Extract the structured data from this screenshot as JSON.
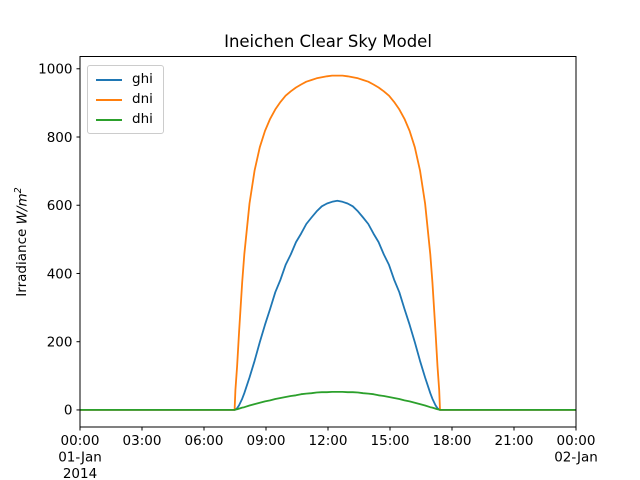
{
  "figure": {
    "background": "#ffffff"
  },
  "chart_data": {
    "type": "line",
    "title": "Ineichen Clear Sky Model",
    "xlabel": "",
    "ylabel": "Irradiance W/m^2",
    "ylabel_parts": {
      "prefix": "Irradiance ",
      "math": "W/m",
      "sup": "2"
    },
    "grid": false,
    "legend_position": "upper left",
    "xlim": [
      0,
      24
    ],
    "ylim": [
      -50,
      1036
    ],
    "yticks": [
      0,
      200,
      400,
      600,
      800,
      1000
    ],
    "xticks": [
      {
        "h": 0,
        "label": "00:00",
        "sub": [
          "01-Jan",
          "2014"
        ]
      },
      {
        "h": 3,
        "label": "03:00"
      },
      {
        "h": 6,
        "label": "06:00"
      },
      {
        "h": 9,
        "label": "09:00"
      },
      {
        "h": 12,
        "label": "12:00"
      },
      {
        "h": 15,
        "label": "15:00"
      },
      {
        "h": 18,
        "label": "18:00"
      },
      {
        "h": 21,
        "label": "21:00"
      },
      {
        "h": 24,
        "label": "00:00",
        "sub": [
          "02-Jan"
        ]
      }
    ],
    "x_unit": "hour of day",
    "x_hours": [
      0,
      7.0,
      7.48,
      7.52,
      7.6,
      7.7,
      7.85,
      7.95,
      8.2,
      8.45,
      8.7,
      8.95,
      9.2,
      9.45,
      9.7,
      9.95,
      10.2,
      10.45,
      10.7,
      10.95,
      11.2,
      11.45,
      11.7,
      11.95,
      12.2,
      12.45,
      12.7,
      12.95,
      13.2,
      13.45,
      13.7,
      13.95,
      14.2,
      14.45,
      14.7,
      14.95,
      15.2,
      15.45,
      15.7,
      15.95,
      16.2,
      16.45,
      16.7,
      16.95,
      17.05,
      17.2,
      17.3,
      17.38,
      17.42,
      18.0,
      24.0
    ],
    "series": [
      {
        "name": "ghi",
        "color": "#1f77b4",
        "peak": 613,
        "values": [
          0,
          0,
          0,
          1,
          5,
          14,
          33,
          49,
          95,
          144,
          199,
          250,
          296,
          345,
          382,
          425,
          456,
          492,
          517,
          545,
          564,
          582,
          597,
          605,
          610,
          613,
          610,
          605,
          597,
          582,
          564,
          545,
          517,
          492,
          456,
          425,
          382,
          345,
          296,
          250,
          199,
          144,
          95,
          49,
          33,
          14,
          5,
          1,
          0,
          0,
          0
        ]
      },
      {
        "name": "dni",
        "color": "#ff7f0e",
        "peak": 980,
        "values": [
          0,
          0,
          0,
          58,
          128,
          230,
          375,
          456,
          605,
          702,
          770,
          818,
          853,
          881,
          903,
          921,
          934,
          945,
          954,
          962,
          967,
          972,
          975,
          978,
          980,
          980,
          980,
          978,
          975,
          972,
          967,
          962,
          954,
          945,
          934,
          921,
          903,
          881,
          853,
          818,
          770,
          702,
          605,
          456,
          375,
          230,
          128,
          58,
          0,
          0,
          0
        ]
      },
      {
        "name": "dhi",
        "color": "#2ca02c",
        "peak": 53,
        "values": [
          0,
          0,
          0,
          1,
          2,
          4,
          7,
          8,
          13,
          17,
          21,
          25,
          28,
          32,
          35,
          38,
          41,
          43,
          46,
          48,
          49,
          51,
          52,
          52,
          53,
          53,
          53,
          52,
          52,
          51,
          49,
          48,
          46,
          43,
          41,
          38,
          35,
          32,
          28,
          25,
          21,
          17,
          13,
          8,
          7,
          4,
          2,
          1,
          0,
          0,
          0
        ]
      }
    ]
  }
}
